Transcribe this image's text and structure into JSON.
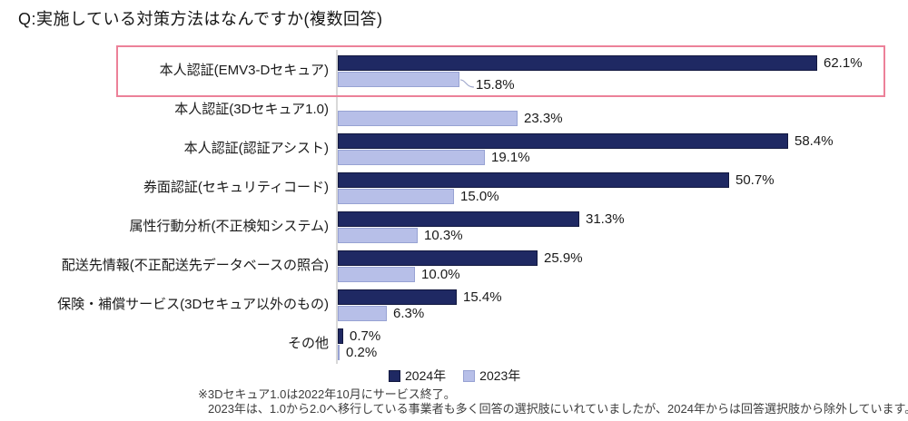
{
  "title": "Q:実施している対策方法はなんですか(複数回答)",
  "chart_data": {
    "type": "bar",
    "orientation": "horizontal",
    "title": "Q:実施している対策方法はなんですか(複数回答)",
    "categories": [
      "本人認証(EMV3-Dセキュア)",
      "本人認証(3Dセキュア1.0)",
      "本人認証(認証アシスト)",
      "券面認証(セキュリティコード)",
      "属性行動分析(不正検知システム)",
      "配送先情報(不正配送先データベースの照合)",
      "保険・補償サービス(3Dセキュア以外のもの)",
      "その他"
    ],
    "series": [
      {
        "name": "2024年",
        "color": "#1f2963",
        "values": [
          62.1,
          null,
          58.4,
          50.7,
          31.3,
          25.9,
          15.4,
          0.7
        ]
      },
      {
        "name": "2023年",
        "color": "#b7bfe8",
        "values": [
          15.8,
          23.3,
          19.1,
          15.0,
          10.3,
          10.0,
          6.3,
          0.2
        ]
      }
    ],
    "value_suffix": "%",
    "xlim": [
      0,
      70
    ],
    "grid": false,
    "legend_position": "bottom",
    "highlighted_category": "本人認証(EMV3-Dセキュア)",
    "callout": {
      "category_index": 0,
      "series_index": 1
    }
  },
  "legend": {
    "items": [
      {
        "label": "2024年",
        "color": "#1f2963"
      },
      {
        "label": "2023年",
        "color": "#b7bfe8"
      }
    ]
  },
  "footnote": {
    "line1": "※3Dセキュア1.0は2022年10月にサービス終了。",
    "line2": "2023年は、1.0から2.0へ移行している事業者も多く回答の選択肢にいれていましたが、2024年からは回答選択肢から除外しています。"
  },
  "colors": {
    "bar_2024": "#1f2963",
    "bar_2023": "#b7bfe8",
    "bar_2023_border": "#97a2d3",
    "highlight_box": "#ec8199",
    "axis_line": "#d9d9d9",
    "leader_line": "#9aa3c9"
  }
}
